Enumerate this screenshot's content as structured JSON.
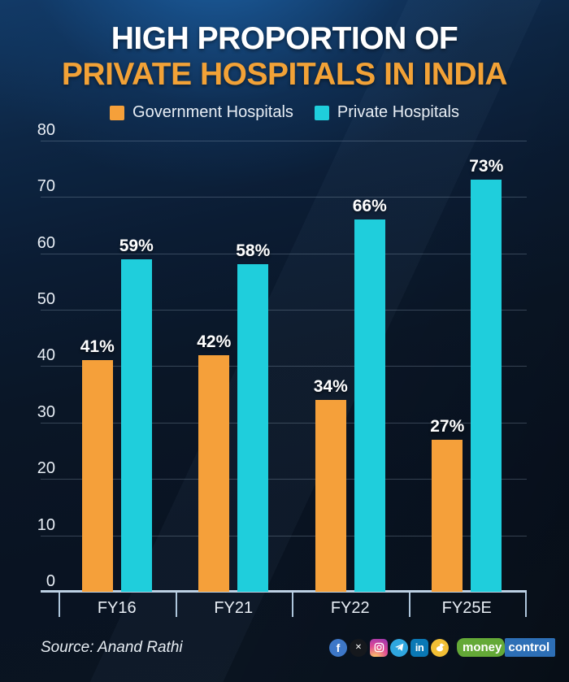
{
  "poster": {
    "title_line1": "HIGH PROPORTION OF",
    "title_line2": "PRIVATE HOSPITALS IN INDIA"
  },
  "legend": {
    "items": [
      {
        "label": "Government Hospitals",
        "color": "#F5A03A"
      },
      {
        "label": "Private Hospitals",
        "color": "#1FCEDC"
      }
    ]
  },
  "chart_data": {
    "type": "bar",
    "title": "High proportion of private hospitals in India",
    "categories": [
      "FY16",
      "FY21",
      "FY22",
      "FY25E"
    ],
    "series": [
      {
        "name": "Government Hospitals",
        "color": "#F5A03A",
        "values": [
          41,
          42,
          34,
          27
        ],
        "labels": [
          "41%",
          "42%",
          "34%",
          "27%"
        ]
      },
      {
        "name": "Private Hospitals",
        "color": "#1FCEDC",
        "values": [
          59,
          58,
          66,
          73
        ],
        "labels": [
          "59%",
          "58%",
          "66%",
          "73%"
        ]
      }
    ],
    "xlabel": "",
    "ylabel": "",
    "ylim": [
      0,
      80
    ],
    "yticks": [
      0,
      10,
      20,
      30,
      40,
      50,
      60,
      70,
      80
    ],
    "grid": true,
    "legend_position": "top"
  },
  "footer": {
    "source": "Source: Anand Rathi",
    "social_icons": [
      "facebook-icon",
      "x-icon",
      "instagram-icon",
      "telegram-icon",
      "linkedin-icon",
      "koo-icon"
    ],
    "brand": {
      "part1": "money",
      "part2": "control",
      "green": "#64A937",
      "blue": "#2D6FB6"
    }
  },
  "colors": {
    "background_top": "#15497F",
    "background_bottom": "#0A1420",
    "title_accent": "#F2A237",
    "text": "#E8EEF5",
    "axis": "#BDD1E4",
    "gridline": "rgba(158,178,198,0.30)"
  }
}
